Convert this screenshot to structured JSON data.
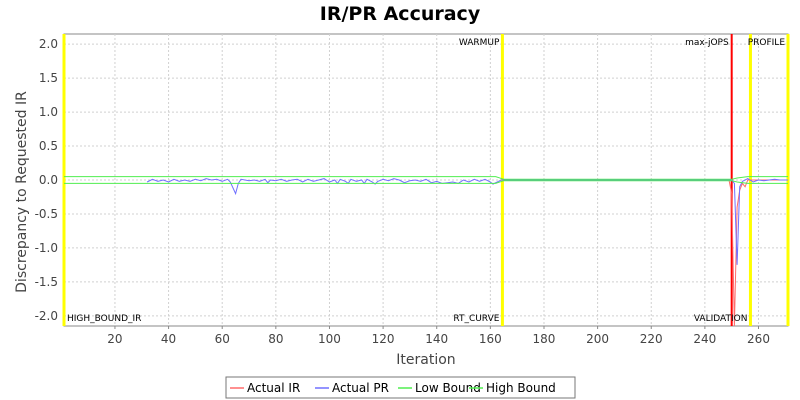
{
  "chart_data": {
    "type": "line",
    "title": "IR/PR Accuracy",
    "xlabel": "Iteration",
    "ylabel": "Discrepancy to Requested IR",
    "xlim": [
      1,
      271
    ],
    "ylim": [
      -2.15,
      2.15
    ],
    "xticks": [
      20,
      40,
      60,
      80,
      100,
      120,
      140,
      160,
      180,
      200,
      220,
      240,
      260
    ],
    "yticks": [
      2.0,
      1.5,
      1.0,
      0.5,
      0.0,
      -0.5,
      -1.0,
      -1.5,
      -2.0
    ],
    "grid": true,
    "legend_position": "bottom-center",
    "markers": [
      {
        "label": "WARMUP",
        "x": 164.5,
        "color": "#ffff00",
        "label_pos": "top"
      },
      {
        "label": "RT_CURVE",
        "x": 164.5,
        "color": "#ffff00",
        "label_pos": "bottom"
      },
      {
        "label": "max-jOPS",
        "x": 250,
        "color": "#ff0000",
        "label_pos": "top"
      },
      {
        "label": "VALIDATION",
        "x": 257,
        "color": "#ffff00",
        "label_pos": "bottom"
      },
      {
        "label": "PROFILE",
        "x": 271,
        "color": "#ffff00",
        "label_pos": "top"
      },
      {
        "label": "HIGH_BOUND_IR",
        "x": 1,
        "color": "#ffff00",
        "label_pos": "bottom"
      }
    ],
    "series": [
      {
        "name": "Actual IR",
        "color": "#ff6b6b",
        "points": [
          [
            165,
            0
          ],
          [
            200,
            0
          ],
          [
            249,
            0
          ],
          [
            250,
            -0.2
          ],
          [
            251,
            -2.15
          ],
          [
            252,
            -0.4
          ],
          [
            253,
            -0.15
          ],
          [
            254,
            -0.05
          ],
          [
            255,
            -0.1
          ],
          [
            256,
            0
          ],
          [
            271,
            0
          ]
        ]
      },
      {
        "name": "Actual PR",
        "color": "#7070ff",
        "points": [
          [
            32,
            -0.03
          ],
          [
            34,
            0.01
          ],
          [
            36,
            -0.02
          ],
          [
            38,
            0.0
          ],
          [
            40,
            -0.03
          ],
          [
            42,
            0.01
          ],
          [
            44,
            -0.02
          ],
          [
            46,
            0.0
          ],
          [
            48,
            -0.02
          ],
          [
            50,
            0.01
          ],
          [
            52,
            -0.01
          ],
          [
            54,
            0.02
          ],
          [
            56,
            0.0
          ],
          [
            58,
            0.01
          ],
          [
            60,
            -0.02
          ],
          [
            62,
            0.01
          ],
          [
            63,
            -0.03
          ],
          [
            65,
            -0.2
          ],
          [
            66,
            -0.05
          ],
          [
            67,
            0.01
          ],
          [
            70,
            -0.01
          ],
          [
            72,
            0.0
          ],
          [
            74,
            -0.02
          ],
          [
            76,
            0.01
          ],
          [
            77,
            -0.04
          ],
          [
            78,
            0.0
          ],
          [
            80,
            -0.01
          ],
          [
            82,
            0.01
          ],
          [
            84,
            -0.02
          ],
          [
            86,
            0.0
          ],
          [
            88,
            0.01
          ],
          [
            90,
            -0.03
          ],
          [
            92,
            0.01
          ],
          [
            94,
            -0.02
          ],
          [
            96,
            0.0
          ],
          [
            98,
            0.02
          ],
          [
            100,
            -0.03
          ],
          [
            102,
            0.0
          ],
          [
            103,
            -0.05
          ],
          [
            104,
            0.01
          ],
          [
            106,
            -0.02
          ],
          [
            107,
            -0.05
          ],
          [
            108,
            0.01
          ],
          [
            110,
            -0.02
          ],
          [
            112,
            0.0
          ],
          [
            113,
            -0.05
          ],
          [
            114,
            0.01
          ],
          [
            116,
            -0.03
          ],
          [
            117,
            -0.06
          ],
          [
            118,
            -0.02
          ],
          [
            120,
            0.01
          ],
          [
            122,
            -0.01
          ],
          [
            124,
            0.02
          ],
          [
            126,
            0.0
          ],
          [
            128,
            -0.04
          ],
          [
            130,
            -0.01
          ],
          [
            132,
            0.0
          ],
          [
            134,
            -0.02
          ],
          [
            136,
            0.01
          ],
          [
            138,
            -0.04
          ],
          [
            140,
            -0.02
          ],
          [
            142,
            -0.05
          ],
          [
            144,
            -0.04
          ],
          [
            146,
            -0.03
          ],
          [
            148,
            -0.05
          ],
          [
            150,
            0.0
          ],
          [
            152,
            -0.03
          ],
          [
            154,
            0.01
          ],
          [
            156,
            -0.02
          ],
          [
            158,
            0.01
          ],
          [
            160,
            -0.03
          ],
          [
            161,
            -0.06
          ],
          [
            162,
            -0.04
          ],
          [
            163,
            -0.02
          ],
          [
            164,
            0.0
          ],
          [
            170,
            0.0
          ],
          [
            180,
            0.0
          ],
          [
            190,
            0.0
          ],
          [
            200,
            0.0
          ],
          [
            210,
            0.0
          ],
          [
            220,
            0.0
          ],
          [
            230,
            0.0
          ],
          [
            240,
            0.0
          ],
          [
            249,
            0.0
          ],
          [
            250,
            0.0
          ],
          [
            251,
            -0.05
          ],
          [
            252,
            -1.25
          ],
          [
            253,
            -0.1
          ],
          [
            254,
            -0.02
          ],
          [
            256,
            0.02
          ],
          [
            258,
            -0.03
          ],
          [
            260,
            0.0
          ],
          [
            262,
            -0.01
          ],
          [
            264,
            0.0
          ],
          [
            266,
            0.01
          ],
          [
            268,
            0.0
          ],
          [
            271,
            0.0
          ]
        ]
      },
      {
        "name": "Low Bound",
        "color": "#50ee50",
        "points": [
          [
            1,
            -0.05
          ],
          [
            162,
            -0.05
          ],
          [
            165,
            -0.01
          ],
          [
            250,
            -0.01
          ],
          [
            252,
            -0.03
          ],
          [
            256,
            -0.05
          ],
          [
            271,
            -0.05
          ]
        ]
      },
      {
        "name": "High Bound",
        "color": "#50ee50",
        "points": [
          [
            1,
            0.05
          ],
          [
            162,
            0.05
          ],
          [
            165,
            0.01
          ],
          [
            250,
            0.01
          ],
          [
            252,
            0.03
          ],
          [
            256,
            0.05
          ],
          [
            271,
            0.05
          ]
        ]
      }
    ]
  }
}
